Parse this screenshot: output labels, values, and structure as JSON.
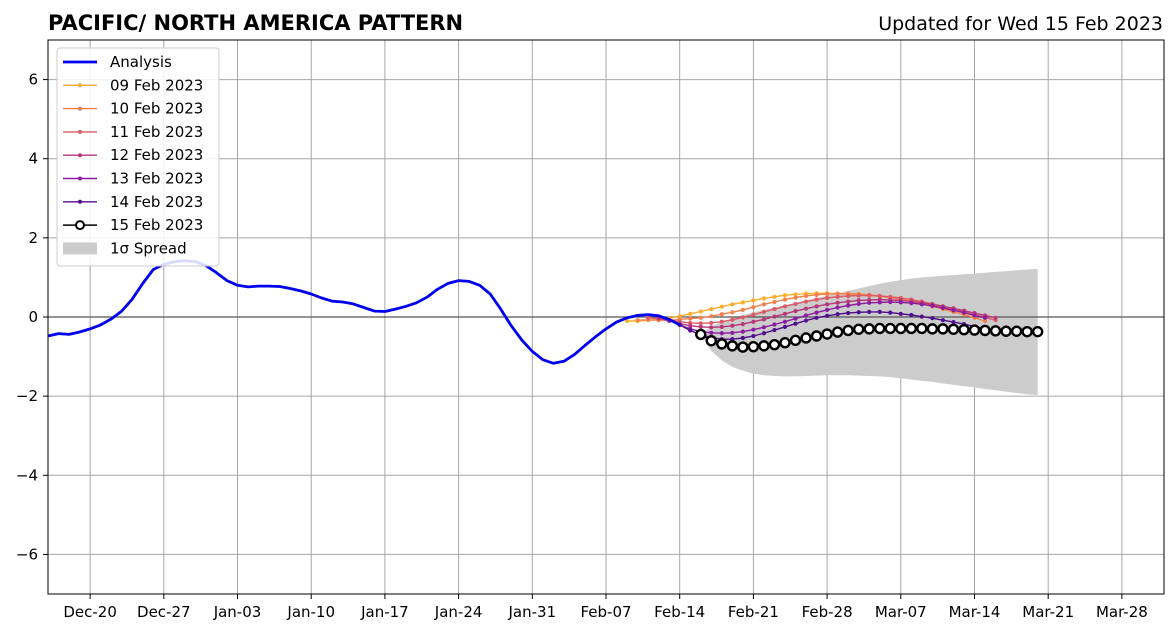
{
  "chart_data": {
    "type": "line",
    "title": "PACIFIC/ NORTH AMERICA PATTERN",
    "subtitle": "Updated for Wed 15 Feb 2023",
    "xlabel": "",
    "ylabel": "",
    "x_range": [
      "2022-12-16",
      "2023-04-01"
    ],
    "ylim": [
      -7,
      7
    ],
    "yticks": [
      -6,
      -4,
      -2,
      0,
      2,
      4,
      6
    ],
    "ytick_labels": [
      "−6",
      "−4",
      "−2",
      "0",
      "2",
      "4",
      "6"
    ],
    "xticks": [
      {
        "date": "2022-12-20",
        "label": "Dec-20"
      },
      {
        "date": "2022-12-27",
        "label": "Dec-27"
      },
      {
        "date": "2023-01-03",
        "label": "Jan-03"
      },
      {
        "date": "2023-01-10",
        "label": "Jan-10"
      },
      {
        "date": "2023-01-17",
        "label": "Jan-17"
      },
      {
        "date": "2023-01-24",
        "label": "Jan-24"
      },
      {
        "date": "2023-01-31",
        "label": "Jan-31"
      },
      {
        "date": "2023-02-07",
        "label": "Feb-07"
      },
      {
        "date": "2023-02-14",
        "label": "Feb-14"
      },
      {
        "date": "2023-02-21",
        "label": "Feb-21"
      },
      {
        "date": "2023-02-28",
        "label": "Feb-28"
      },
      {
        "date": "2023-03-07",
        "label": "Mar-07"
      },
      {
        "date": "2023-03-14",
        "label": "Mar-14"
      },
      {
        "date": "2023-03-21",
        "label": "Mar-21"
      },
      {
        "date": "2023-03-28",
        "label": "Mar-28"
      }
    ],
    "grid": true,
    "legend_placement": "upper-left",
    "analysis": {
      "name": "Analysis",
      "color": "#0000ee",
      "points": [
        [
          "2022-12-16",
          -0.48
        ],
        [
          "2022-12-17",
          -0.42
        ],
        [
          "2022-12-18",
          -0.44
        ],
        [
          "2022-12-19",
          -0.38
        ],
        [
          "2022-12-20",
          -0.3
        ],
        [
          "2022-12-21",
          -0.2
        ],
        [
          "2022-12-22",
          -0.05
        ],
        [
          "2022-12-23",
          0.15
        ],
        [
          "2022-12-24",
          0.45
        ],
        [
          "2022-12-25",
          0.85
        ],
        [
          "2022-12-26",
          1.2
        ],
        [
          "2022-12-27",
          1.33
        ],
        [
          "2022-12-28",
          1.4
        ],
        [
          "2022-12-29",
          1.42
        ],
        [
          "2022-12-30",
          1.4
        ],
        [
          "2022-12-31",
          1.3
        ],
        [
          "2023-01-01",
          1.12
        ],
        [
          "2023-01-02",
          0.92
        ],
        [
          "2023-01-03",
          0.8
        ],
        [
          "2023-01-04",
          0.76
        ],
        [
          "2023-01-05",
          0.78
        ],
        [
          "2023-01-06",
          0.78
        ],
        [
          "2023-01-07",
          0.77
        ],
        [
          "2023-01-08",
          0.72
        ],
        [
          "2023-01-09",
          0.66
        ],
        [
          "2023-01-10",
          0.58
        ],
        [
          "2023-01-11",
          0.48
        ],
        [
          "2023-01-12",
          0.4
        ],
        [
          "2023-01-13",
          0.38
        ],
        [
          "2023-01-14",
          0.33
        ],
        [
          "2023-01-15",
          0.24
        ],
        [
          "2023-01-16",
          0.15
        ],
        [
          "2023-01-17",
          0.14
        ],
        [
          "2023-01-18",
          0.2
        ],
        [
          "2023-01-19",
          0.27
        ],
        [
          "2023-01-20",
          0.36
        ],
        [
          "2023-01-21",
          0.5
        ],
        [
          "2023-01-22",
          0.7
        ],
        [
          "2023-01-23",
          0.85
        ],
        [
          "2023-01-24",
          0.92
        ],
        [
          "2023-01-25",
          0.9
        ],
        [
          "2023-01-26",
          0.8
        ],
        [
          "2023-01-27",
          0.58
        ],
        [
          "2023-01-28",
          0.2
        ],
        [
          "2023-01-29",
          -0.22
        ],
        [
          "2023-01-30",
          -0.58
        ],
        [
          "2023-01-31",
          -0.87
        ],
        [
          "2023-02-01",
          -1.08
        ],
        [
          "2023-02-02",
          -1.17
        ],
        [
          "2023-02-03",
          -1.12
        ],
        [
          "2023-02-04",
          -0.95
        ],
        [
          "2023-02-05",
          -0.72
        ],
        [
          "2023-02-06",
          -0.5
        ],
        [
          "2023-02-07",
          -0.3
        ],
        [
          "2023-02-08",
          -0.13
        ],
        [
          "2023-02-09",
          -0.02
        ],
        [
          "2023-02-10",
          0.04
        ],
        [
          "2023-02-11",
          0.06
        ],
        [
          "2023-02-12",
          0.03
        ],
        [
          "2023-02-13",
          -0.06
        ],
        [
          "2023-02-14",
          -0.2
        ]
      ]
    },
    "series": [
      {
        "name": "09 Feb 2023",
        "color": "#fbae2d",
        "start": "2023-02-09",
        "values": [
          -0.1,
          -0.1,
          -0.08,
          -0.06,
          -0.03,
          0.02,
          0.08,
          0.14,
          0.2,
          0.26,
          0.32,
          0.37,
          0.42,
          0.47,
          0.51,
          0.55,
          0.57,
          0.59,
          0.6,
          0.6,
          0.59,
          0.58,
          0.56,
          0.54,
          0.52,
          0.49,
          0.45,
          0.41,
          0.36,
          0.31,
          0.25,
          0.19,
          0.12,
          0.05
        ]
      },
      {
        "name": "10 Feb 2023",
        "color": "#f3804a",
        "start": "2023-02-10",
        "values": [
          -0.08,
          -0.07,
          -0.08,
          -0.08,
          -0.06,
          -0.04,
          -0.02,
          0.02,
          0.07,
          0.12,
          0.18,
          0.25,
          0.32,
          0.38,
          0.44,
          0.49,
          0.53,
          0.56,
          0.58,
          0.59,
          0.59,
          0.58,
          0.56,
          0.53,
          0.49,
          0.44,
          0.39,
          0.33,
          0.27,
          0.2,
          0.13,
          0.06,
          -0.02,
          -0.1
        ]
      },
      {
        "name": "11 Feb 2023",
        "color": "#dd5a66",
        "start": "2023-02-11",
        "values": [
          -0.02,
          -0.04,
          -0.08,
          -0.12,
          -0.15,
          -0.16,
          -0.15,
          -0.12,
          -0.07,
          -0.01,
          0.06,
          0.13,
          0.2,
          0.27,
          0.33,
          0.39,
          0.44,
          0.48,
          0.51,
          0.53,
          0.54,
          0.54,
          0.53,
          0.51,
          0.48,
          0.44,
          0.39,
          0.33,
          0.27,
          0.2,
          0.13,
          0.06,
          -0.01,
          -0.08
        ]
      },
      {
        "name": "12 Feb 2023",
        "color": "#b73779",
        "start": "2023-02-12",
        "values": [
          -0.03,
          -0.1,
          -0.17,
          -0.22,
          -0.25,
          -0.26,
          -0.25,
          -0.22,
          -0.18,
          -0.12,
          -0.06,
          0.01,
          0.08,
          0.15,
          0.21,
          0.27,
          0.32,
          0.36,
          0.39,
          0.42,
          0.43,
          0.44,
          0.43,
          0.42,
          0.39,
          0.36,
          0.32,
          0.27,
          0.22,
          0.16,
          0.1,
          0.04,
          -0.02
        ]
      },
      {
        "name": "13 Feb 2023",
        "color": "#8c1ca0",
        "start": "2023-02-13",
        "values": [
          -0.08,
          -0.2,
          -0.3,
          -0.37,
          -0.4,
          -0.41,
          -0.4,
          -0.37,
          -0.32,
          -0.26,
          -0.19,
          -0.12,
          -0.04,
          0.04,
          0.11,
          0.18,
          0.24,
          0.29,
          0.33,
          0.36,
          0.37,
          0.38,
          0.37,
          0.35,
          0.32,
          0.28,
          0.23,
          0.17,
          0.11,
          0.04,
          -0.02
        ]
      },
      {
        "name": "14 Feb 2023",
        "color": "#510e8c",
        "start": "2023-02-14",
        "values": [
          -0.2,
          -0.34,
          -0.45,
          -0.52,
          -0.56,
          -0.56,
          -0.53,
          -0.48,
          -0.41,
          -0.33,
          -0.25,
          -0.17,
          -0.09,
          -0.02,
          0.03,
          0.07,
          0.1,
          0.12,
          0.13,
          0.13,
          0.11,
          0.08,
          0.05,
          0.01,
          -0.03,
          -0.08,
          -0.13,
          -0.18,
          -0.24,
          -0.3
        ]
      }
    ],
    "forecast": {
      "name": "15 Feb 2023",
      "color": "#000000",
      "start": "2023-02-16",
      "values": [
        -0.44,
        -0.6,
        -0.68,
        -0.73,
        -0.76,
        -0.75,
        -0.73,
        -0.7,
        -0.65,
        -0.59,
        -0.53,
        -0.48,
        -0.43,
        -0.38,
        -0.34,
        -0.31,
        -0.3,
        -0.29,
        -0.29,
        -0.29,
        -0.29,
        -0.29,
        -0.3,
        -0.3,
        -0.31,
        -0.32,
        -0.33,
        -0.34,
        -0.35,
        -0.36,
        -0.36,
        -0.37,
        -0.37
      ]
    },
    "spread": {
      "name": "1σ Spread",
      "color": "#cccccc",
      "start": "2023-02-16",
      "upper": [
        -0.44,
        -0.24,
        -0.12,
        -0.03,
        0.05,
        0.12,
        0.18,
        0.24,
        0.3,
        0.36,
        0.42,
        0.48,
        0.54,
        0.6,
        0.66,
        0.72,
        0.78,
        0.84,
        0.89,
        0.93,
        0.97,
        1.0,
        1.02,
        1.04,
        1.06,
        1.08,
        1.1,
        1.12,
        1.14,
        1.16,
        1.18,
        1.2,
        1.22
      ],
      "lower": [
        -0.44,
        -0.86,
        -1.1,
        -1.26,
        -1.36,
        -1.43,
        -1.47,
        -1.49,
        -1.5,
        -1.5,
        -1.49,
        -1.48,
        -1.47,
        -1.47,
        -1.47,
        -1.48,
        -1.49,
        -1.5,
        -1.52,
        -1.55,
        -1.58,
        -1.61,
        -1.64,
        -1.68,
        -1.71,
        -1.75,
        -1.78,
        -1.82,
        -1.85,
        -1.89,
        -1.92,
        -1.95,
        -1.97
      ]
    }
  }
}
